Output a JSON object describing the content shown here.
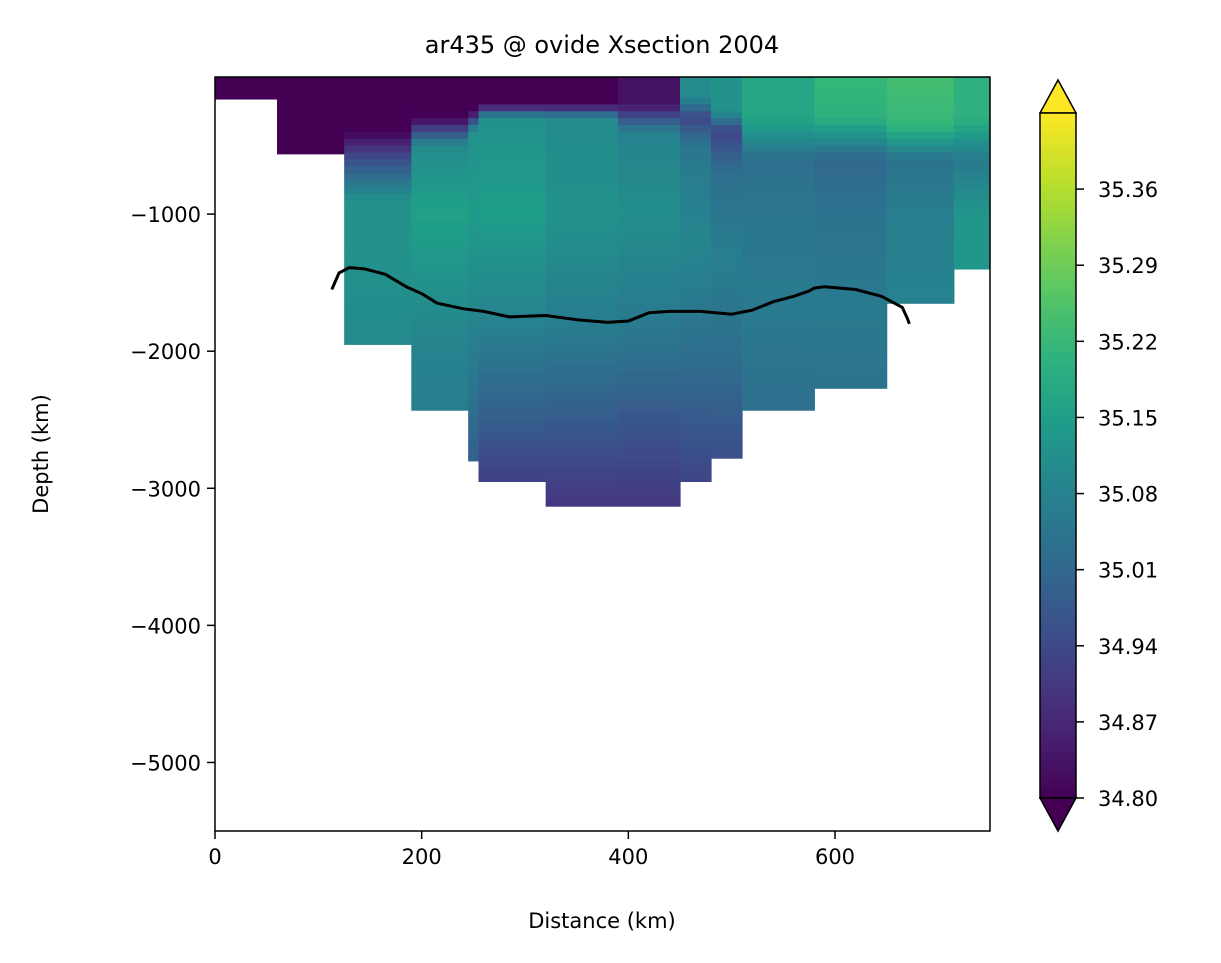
{
  "chart_data": {
    "type": "heatmap",
    "title": "ar435 @ ovide Xsection 2004",
    "xlabel": "Distance (km)",
    "ylabel": "Depth (km)",
    "xlim": [
      0,
      750
    ],
    "ylim": [
      -5500,
      0
    ],
    "x_ticks": [
      0,
      200,
      400,
      600
    ],
    "y_ticks": [
      -1000,
      -2000,
      -3000,
      -4000,
      -5000
    ],
    "grid": false,
    "colormap": "viridis",
    "colorbar": {
      "vmin": 34.8,
      "vmax": 35.43,
      "extend": "both",
      "ticks": [
        "34.80",
        "34.87",
        "34.94",
        "35.01",
        "35.08",
        "35.15",
        "35.22",
        "35.29",
        "35.36"
      ]
    },
    "columns": [
      {
        "x0": 0,
        "x1": 60,
        "bottom": -160,
        "salinity": [
          [
            0,
            34.8
          ],
          [
            -160,
            34.8
          ]
        ]
      },
      {
        "x0": 60,
        "x1": 125,
        "bottom": -560,
        "salinity": [
          [
            0,
            34.8
          ],
          [
            -560,
            34.8
          ]
        ]
      },
      {
        "x0": 125,
        "x1": 190,
        "bottom": -1950,
        "salinity": [
          [
            0,
            34.8
          ],
          [
            -400,
            34.8
          ],
          [
            -600,
            34.95
          ],
          [
            -900,
            35.12
          ],
          [
            -1300,
            35.12
          ],
          [
            -1950,
            35.1
          ]
        ]
      },
      {
        "x0": 190,
        "x1": 245,
        "bottom": -2430,
        "salinity": [
          [
            0,
            34.8
          ],
          [
            -300,
            34.8
          ],
          [
            -500,
            35.1
          ],
          [
            -1000,
            35.16
          ],
          [
            -1500,
            35.12
          ],
          [
            -2000,
            35.08
          ],
          [
            -2430,
            35.07
          ]
        ]
      },
      {
        "x0": 245,
        "x1": 255,
        "bottom": -2800,
        "salinity": [
          [
            0,
            34.8
          ],
          [
            -250,
            34.8
          ],
          [
            -400,
            35.12
          ],
          [
            -1000,
            35.14
          ],
          [
            -1600,
            35.1
          ],
          [
            -2200,
            35.05
          ],
          [
            -2800,
            34.99
          ]
        ]
      },
      {
        "x0": 255,
        "x1": 320,
        "bottom": -2950,
        "salinity": [
          [
            0,
            34.8
          ],
          [
            -200,
            34.8
          ],
          [
            -300,
            35.12
          ],
          [
            -1000,
            35.15
          ],
          [
            -1800,
            35.08
          ],
          [
            -2400,
            35.0
          ],
          [
            -2950,
            34.92
          ]
        ]
      },
      {
        "x0": 320,
        "x1": 390,
        "bottom": -3130,
        "salinity": [
          [
            0,
            34.8
          ],
          [
            -200,
            34.8
          ],
          [
            -300,
            35.1
          ],
          [
            -1000,
            35.12
          ],
          [
            -1900,
            35.06
          ],
          [
            -2500,
            34.98
          ],
          [
            -3130,
            34.9
          ]
        ]
      },
      {
        "x0": 390,
        "x1": 450,
        "bottom": -3130,
        "salinity": [
          [
            0,
            34.83
          ],
          [
            -200,
            34.83
          ],
          [
            -400,
            35.08
          ],
          [
            -1000,
            35.11
          ],
          [
            -1900,
            35.05
          ],
          [
            -2500,
            34.97
          ],
          [
            -3130,
            34.9
          ]
        ]
      },
      {
        "x0": 450,
        "x1": 480,
        "bottom": -2950,
        "salinity": [
          [
            0,
            35.1
          ],
          [
            -150,
            35.1
          ],
          [
            -300,
            34.93
          ],
          [
            -500,
            35.05
          ],
          [
            -1200,
            35.09
          ],
          [
            -2000,
            35.03
          ],
          [
            -2950,
            34.93
          ]
        ]
      },
      {
        "x0": 480,
        "x1": 510,
        "bottom": -2780,
        "salinity": [
          [
            0,
            35.12
          ],
          [
            -250,
            35.12
          ],
          [
            -400,
            34.93
          ],
          [
            -700,
            35.03
          ],
          [
            -1300,
            35.07
          ],
          [
            -2000,
            35.03
          ],
          [
            -2780,
            34.95
          ]
        ]
      },
      {
        "x0": 510,
        "x1": 580,
        "bottom": -2430,
        "salinity": [
          [
            0,
            35.17
          ],
          [
            -300,
            35.17
          ],
          [
            -600,
            35.03
          ],
          [
            -1000,
            35.05
          ],
          [
            -1700,
            35.06
          ],
          [
            -2430,
            35.03
          ]
        ]
      },
      {
        "x0": 580,
        "x1": 650,
        "bottom": -2270,
        "salinity": [
          [
            0,
            35.22
          ],
          [
            -300,
            35.2
          ],
          [
            -600,
            35.01
          ],
          [
            -1000,
            35.04
          ],
          [
            -1700,
            35.06
          ],
          [
            -2270,
            35.04
          ]
        ]
      },
      {
        "x0": 650,
        "x1": 715,
        "bottom": -1650,
        "salinity": [
          [
            0,
            35.24
          ],
          [
            -350,
            35.22
          ],
          [
            -600,
            35.04
          ],
          [
            -1000,
            35.07
          ],
          [
            -1650,
            35.08
          ]
        ]
      },
      {
        "x0": 715,
        "x1": 750,
        "bottom": -1400,
        "salinity": [
          [
            0,
            35.2
          ],
          [
            -300,
            35.2
          ],
          [
            -600,
            35.06
          ],
          [
            -1000,
            35.13
          ],
          [
            -1400,
            35.13
          ]
        ]
      }
    ],
    "series": [
      {
        "type": "line",
        "color": "#000000",
        "x": [
          113,
          120,
          130,
          145,
          165,
          185,
          200,
          215,
          240,
          260,
          285,
          320,
          350,
          380,
          400,
          420,
          440,
          470,
          500,
          520,
          540,
          560,
          575,
          580,
          590,
          620,
          645,
          665,
          670,
          672
        ],
        "y": [
          -1550,
          -1430,
          -1390,
          -1400,
          -1440,
          -1530,
          -1580,
          -1650,
          -1690,
          -1710,
          -1750,
          -1740,
          -1770,
          -1790,
          -1780,
          -1720,
          -1710,
          -1710,
          -1730,
          -1700,
          -1640,
          -1600,
          -1560,
          -1540,
          -1530,
          -1550,
          -1600,
          -1680,
          -1760,
          -1800
        ]
      }
    ]
  }
}
